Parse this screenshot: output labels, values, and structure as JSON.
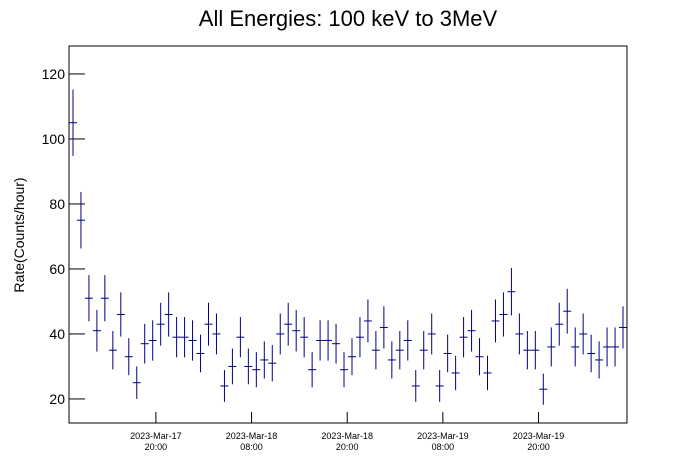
{
  "chart_data": {
    "type": "histogram",
    "title": "All Energies:  100 keV to 3MeV",
    "y_label": "Rate(Counts/hour)",
    "bins": [
      0,
      1,
      2,
      3,
      4,
      5,
      6,
      7,
      8,
      9,
      10,
      11,
      12,
      13,
      14,
      15,
      16,
      17,
      18,
      19,
      20,
      21,
      22,
      23,
      24,
      25,
      26,
      27,
      28,
      29,
      30,
      31,
      32,
      33,
      34,
      35,
      36,
      37,
      38,
      39,
      40,
      41,
      42,
      43,
      44,
      45,
      46,
      47,
      48,
      49,
      50,
      51,
      52,
      53,
      54,
      55,
      56,
      57,
      58,
      59,
      60,
      61,
      62,
      63,
      64,
      65,
      66,
      67,
      68,
      69,
      70
    ],
    "values": [
      105,
      75,
      51,
      41,
      51,
      35,
      46,
      33,
      25,
      37,
      38,
      43,
      46,
      39,
      39,
      38,
      34,
      43,
      40,
      24,
      30,
      39,
      30,
      29,
      32,
      31,
      40,
      43,
      41,
      39,
      29,
      38,
      38,
      37,
      29,
      33,
      39,
      44,
      35,
      42,
      32,
      35,
      38,
      24,
      35,
      40,
      24,
      34,
      28,
      39,
      41,
      33,
      28,
      44,
      46,
      53,
      40,
      35,
      35,
      23,
      36,
      43,
      47,
      36,
      40,
      34,
      32,
      36,
      36,
      42
    ],
    "errors": [
      10.2,
      8.7,
      7.1,
      6.4,
      7.1,
      5.9,
      6.8,
      5.7,
      5,
      6.1,
      6.2,
      6.6,
      6.8,
      6.2,
      6.2,
      6.2,
      5.8,
      6.6,
      6.3,
      4.9,
      5.5,
      6.2,
      5.5,
      5.4,
      5.7,
      5.6,
      6.3,
      6.6,
      6.4,
      6.2,
      5.4,
      6.2,
      6.2,
      6.1,
      5.4,
      5.7,
      6.2,
      6.6,
      5.9,
      6.5,
      5.7,
      5.9,
      6.2,
      4.9,
      5.9,
      6.3,
      4.9,
      5.8,
      5.3,
      6.2,
      6.4,
      5.7,
      5.3,
      6.6,
      6.8,
      7.3,
      6.3,
      5.9,
      5.9,
      4.8,
      6,
      6.6,
      6.9,
      6,
      6.3,
      5.8,
      5.7,
      6,
      6,
      6.5
    ],
    "color": "#000080",
    "xlim": [
      0,
      70
    ],
    "xticks": [
      {
        "value": 10.9,
        "label": [
          "2023-Mar-17",
          "20:00"
        ]
      },
      {
        "value": 22.9,
        "label": [
          "2023-Mar-18",
          "08:00"
        ]
      },
      {
        "value": 34.9,
        "label": [
          "2023-Mar-18",
          "20:00"
        ]
      },
      {
        "value": 46.9,
        "label": [
          "2023-Mar-19",
          "08:00"
        ]
      },
      {
        "value": 58.9,
        "label": [
          "2023-Mar-19",
          "20:00"
        ]
      }
    ],
    "ylim": [
      12.6,
      128.6
    ],
    "yticks": [
      20,
      40,
      60,
      80,
      100,
      120
    ]
  }
}
